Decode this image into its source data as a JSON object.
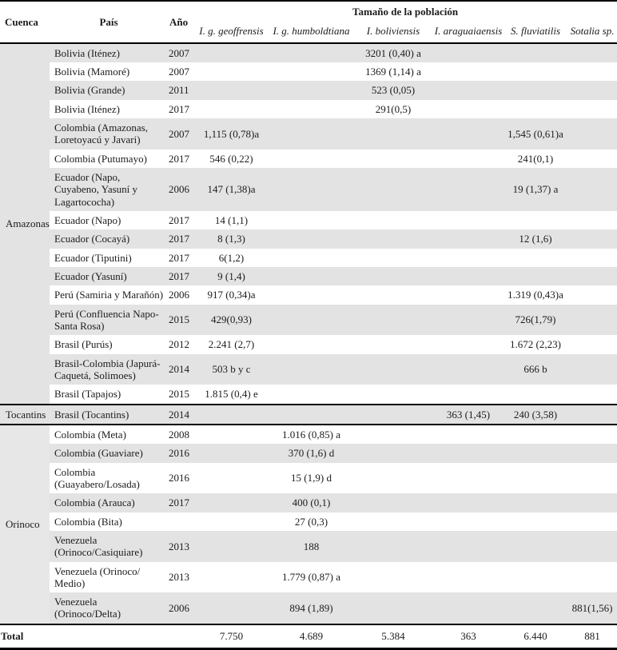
{
  "colors": {
    "stripe_gray": "#e3e3e3",
    "basin_cell_gray": "#e7e7e7",
    "border_black": "#000000",
    "text": "#1c1c1c",
    "background": "#ffffff"
  },
  "table": {
    "headers": {
      "cuenca": "Cuenca",
      "pais": "País",
      "ano": "Año",
      "poblacion": "Tamaño de la población",
      "species": [
        "I. g. geoffrensis",
        "I. g. humboldtiana",
        "I. boliviensis",
        "I. araguaiaensis",
        "S. fluviatilis",
        "Sotalia sp."
      ]
    },
    "groups": [
      {
        "name": "Amazonas",
        "rows": [
          {
            "pais": "Bolivia (Iténez)",
            "ano": "2007",
            "values": [
              "",
              "",
              "3201 (0,40) a",
              "",
              "",
              ""
            ]
          },
          {
            "pais": "Bolivia (Mamoré)",
            "ano": "2007",
            "values": [
              "",
              "",
              "1369 (1,14) a",
              "",
              "",
              ""
            ]
          },
          {
            "pais": "Bolivia (Grande)",
            "ano": "2011",
            "values": [
              "",
              "",
              "523 (0,05)",
              "",
              "",
              ""
            ]
          },
          {
            "pais": "Bolivia (Iténez)",
            "ano": "2017",
            "values": [
              "",
              "",
              "291(0,5)",
              "",
              "",
              ""
            ]
          },
          {
            "pais": "Colombia (Amazonas, Loretoyacú y Javari)",
            "ano": "2007",
            "values": [
              "1,115 (0,78)a",
              "",
              "",
              "",
              "1,545 (0,61)a",
              ""
            ]
          },
          {
            "pais": "Colombia (Putumayo)",
            "ano": "2017",
            "values": [
              "546 (0,22)",
              "",
              "",
              "",
              "241(0,1)",
              ""
            ]
          },
          {
            "pais": "Ecuador (Napo, Cuyabeno, Yasuní y Lagartococha)",
            "ano": "2006",
            "values": [
              "147 (1,38)a",
              "",
              "",
              "",
              "19 (1,37) a",
              ""
            ]
          },
          {
            "pais": "Ecuador (Napo)",
            "ano": "2017",
            "values": [
              "14 (1,1)",
              "",
              "",
              "",
              "",
              ""
            ]
          },
          {
            "pais": "Ecuador (Cocayá)",
            "ano": "2017",
            "values": [
              "8 (1,3)",
              "",
              "",
              "",
              "12 (1,6)",
              ""
            ]
          },
          {
            "pais": "Ecuador (Tiputini)",
            "ano": "2017",
            "values": [
              "6(1,2)",
              "",
              "",
              "",
              "",
              ""
            ]
          },
          {
            "pais": "Ecuador (Yasuní)",
            "ano": "2017",
            "values": [
              "9 (1,4)",
              "",
              "",
              "",
              "",
              ""
            ]
          },
          {
            "pais": "Perú (Samiria y Marañón)",
            "ano": "2006",
            "values": [
              "917 (0,34)a",
              "",
              "",
              "",
              "1.319 (0,43)a",
              ""
            ]
          },
          {
            "pais": "Perú (Confluencia Napo-Santa Rosa)",
            "ano": "2015",
            "values": [
              "429(0,93)",
              "",
              "",
              "",
              "726(1,79)",
              ""
            ]
          },
          {
            "pais": "Brasil (Purús)",
            "ano": "2012",
            "values": [
              "2.241 (2,7)",
              "",
              "",
              "",
              "1.672 (2,23)",
              ""
            ]
          },
          {
            "pais": "Brasil-Colombia (Japurá-Caquetá, Solimoes)",
            "ano": "2014",
            "values": [
              "503 b y c",
              "",
              "",
              "",
              "666 b",
              ""
            ]
          },
          {
            "pais": "Brasil (Tapajos)",
            "ano": "2015",
            "values": [
              "1.815 (0,4) e",
              "",
              "",
              "",
              "",
              ""
            ]
          }
        ]
      },
      {
        "name": "Tocantins",
        "rows": [
          {
            "pais": "Brasil (Tocantins)",
            "ano": "2014",
            "values": [
              "",
              "",
              "",
              "363 (1,45)",
              "240 (3,58)",
              ""
            ]
          }
        ]
      },
      {
        "name": "Orinoco",
        "rows": [
          {
            "pais": "Colombia (Meta)",
            "ano": "2008",
            "values": [
              "",
              "1.016 (0,85) a",
              "",
              "",
              "",
              ""
            ]
          },
          {
            "pais": "Colombia (Guaviare)",
            "ano": "2016",
            "values": [
              "",
              "370 (1,6) d",
              "",
              "",
              "",
              ""
            ]
          },
          {
            "pais": "Colombia (Guayabero/Losada)",
            "ano": "2016",
            "values": [
              "",
              "15 (1,9) d",
              "",
              "",
              "",
              ""
            ]
          },
          {
            "pais": "Colombia (Arauca)",
            "ano": "2017",
            "values": [
              "",
              "400 (0,1)",
              "",
              "",
              "",
              ""
            ]
          },
          {
            "pais": "Colombia (Bita)",
            "ano": "",
            "values": [
              "",
              "27 (0,3)",
              "",
              "",
              "",
              ""
            ]
          },
          {
            "pais": "Venezuela (Orinoco/Casiquiare)",
            "ano": "2013",
            "values": [
              "",
              "188",
              "",
              "",
              "",
              ""
            ]
          },
          {
            "pais": "Venezuela (Orinoco/ Medio)",
            "ano": "2013",
            "values": [
              "",
              "1.779 (0,87) a",
              "",
              "",
              "",
              ""
            ]
          },
          {
            "pais": "Venezuela (Orinoco/Delta)",
            "ano": "2006",
            "values": [
              "",
              "894 (1,89)",
              "",
              "",
              "",
              "881(1,56)"
            ]
          }
        ]
      }
    ],
    "total": {
      "label": "Total",
      "values": [
        "7.750",
        "4.689",
        "5.384",
        "363",
        "6.440",
        "881"
      ]
    }
  }
}
